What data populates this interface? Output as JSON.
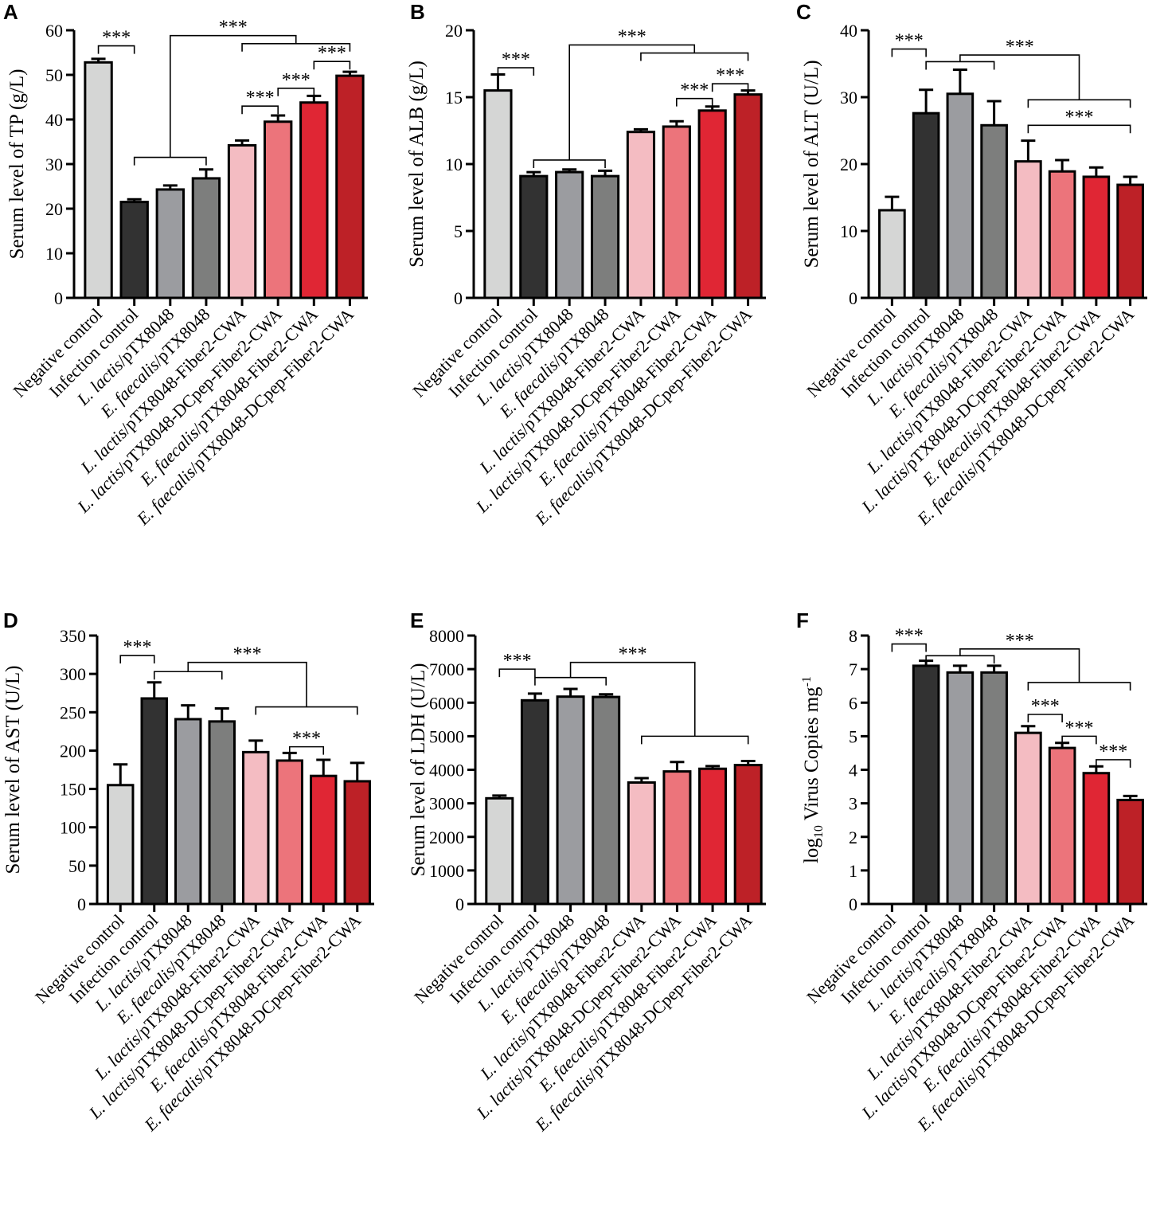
{
  "categories": [
    {
      "prefix": "",
      "italic": "",
      "suffix": "Negative control"
    },
    {
      "prefix": "",
      "italic": "",
      "suffix": "Infection control"
    },
    {
      "prefix": "",
      "italic": "L. lactis",
      "suffix": "/pTX8048"
    },
    {
      "prefix": "",
      "italic": "E. faecalis",
      "suffix": "/pTX8048"
    },
    {
      "prefix": "",
      "italic": "L. lactis",
      "suffix": "/pTX8048-Fiber2-CWA"
    },
    {
      "prefix": "",
      "italic": "L. lactis",
      "suffix": "/pTX8048-DCpep-Fiber2-CWA"
    },
    {
      "prefix": "",
      "italic": "E. faecalis",
      "suffix": "/pTX8048-Fiber2-CWA"
    },
    {
      "prefix": "",
      "italic": "E. faecalis",
      "suffix": "/pTX8048-DCpep-Fiber2-CWA"
    }
  ],
  "colors": [
    "#d5d6d5",
    "#323232",
    "#9b9ca0",
    "#7d7e7d",
    "#f4bcc2",
    "#ec747b",
    "#e02634",
    "#bd2127"
  ],
  "significance_label": "***",
  "chart_data": [
    {
      "panel": "A",
      "type": "bar",
      "ylabel": "Serum level of TP (g/L)",
      "ylim": [
        0,
        60
      ],
      "yticks": [
        0,
        10,
        20,
        30,
        40,
        50,
        60
      ],
      "values": [
        52.8,
        21.5,
        24.3,
        26.8,
        34.2,
        39.5,
        43.8,
        49.8
      ],
      "errors": [
        0.8,
        0.6,
        0.9,
        2.0,
        1.1,
        1.4,
        1.5,
        0.9
      ],
      "brackets": [
        {
          "type": "simple",
          "a": 0,
          "b": 1,
          "level": 56.5,
          "label": true
        },
        {
          "type": "simple",
          "a": 4,
          "b": 5,
          "level": 43.0,
          "label": true
        },
        {
          "type": "simple",
          "a": 5,
          "b": 6,
          "level": 47.0,
          "label": true
        },
        {
          "type": "simple",
          "a": 6,
          "b": 7,
          "level": 53.0,
          "label": true
        },
        {
          "type": "group",
          "from": 1,
          "to": 3,
          "level": 31.5,
          "stem_to": 58.8,
          "partner": {
            "from": 4,
            "to": 7,
            "level": 57.0
          },
          "label": true
        }
      ]
    },
    {
      "panel": "B",
      "type": "bar",
      "ylabel": "Serum level of ALB (g/L)",
      "ylim": [
        0,
        20
      ],
      "yticks": [
        0,
        5,
        10,
        15,
        20
      ],
      "values": [
        15.5,
        9.1,
        9.4,
        9.1,
        12.4,
        12.8,
        14.0,
        15.2
      ],
      "errors": [
        1.2,
        0.3,
        0.2,
        0.4,
        0.2,
        0.4,
        0.3,
        0.3
      ],
      "brackets": [
        {
          "type": "simple",
          "a": 0,
          "b": 1,
          "level": 17.2,
          "label": true
        },
        {
          "type": "simple",
          "a": 5,
          "b": 6,
          "level": 14.9,
          "label": true
        },
        {
          "type": "simple",
          "a": 6,
          "b": 7,
          "level": 16.0,
          "label": true
        },
        {
          "type": "group",
          "from": 1,
          "to": 3,
          "level": 10.3,
          "stem_to": 18.9,
          "partner": {
            "from": 4,
            "to": 7,
            "level": 18.3
          },
          "label": true
        }
      ]
    },
    {
      "panel": "C",
      "type": "bar",
      "ylabel": "Serum level of ALT (U/L)",
      "ylim": [
        0,
        40
      ],
      "yticks": [
        0,
        10,
        20,
        30,
        40
      ],
      "values": [
        13.1,
        27.6,
        30.5,
        25.8,
        20.4,
        18.9,
        18.1,
        16.9
      ],
      "errors": [
        2.0,
        3.5,
        3.6,
        3.6,
        3.1,
        1.7,
        1.4,
        1.2
      ],
      "brackets": [
        {
          "type": "simple",
          "a": 0,
          "b": 1,
          "level": 37.2,
          "label": true
        },
        {
          "type": "simple",
          "a": 4,
          "b": 7,
          "level": 25.8,
          "label": true
        },
        {
          "type": "group",
          "from": 1,
          "to": 3,
          "level": 35.3,
          "stem_to": 36.3,
          "partner": {
            "from": 4,
            "to": 7,
            "level": 29.6
          },
          "label": true
        }
      ]
    },
    {
      "panel": "D",
      "type": "bar",
      "ylabel": "Serum level of AST (U/L)",
      "ylim": [
        0,
        350
      ],
      "yticks": [
        0,
        50,
        100,
        150,
        200,
        250,
        300,
        350
      ],
      "values": [
        155,
        268,
        241,
        238,
        198,
        187,
        167,
        160
      ],
      "errors": [
        27,
        21,
        18,
        17,
        15,
        10,
        21,
        24
      ],
      "brackets": [
        {
          "type": "simple",
          "a": 0,
          "b": 1,
          "level": 324,
          "label": true
        },
        {
          "type": "simple",
          "a": 5,
          "b": 6,
          "level": 205,
          "label": true
        },
        {
          "type": "group",
          "from": 1,
          "to": 3,
          "level": 303,
          "stem_to": 315,
          "partner": {
            "from": 4,
            "to": 7,
            "level": 257
          },
          "label": true
        }
      ]
    },
    {
      "panel": "E",
      "type": "bar",
      "ylabel": "Serum level of LDH (U/L)",
      "ylim": [
        0,
        8000
      ],
      "yticks": [
        0,
        1000,
        2000,
        3000,
        4000,
        5000,
        6000,
        7000,
        8000
      ],
      "values": [
        3150,
        6070,
        6180,
        6170,
        3620,
        3950,
        4030,
        4140
      ],
      "errors": [
        80,
        200,
        230,
        80,
        130,
        280,
        80,
        120
      ],
      "brackets": [
        {
          "type": "simple",
          "a": 0,
          "b": 1,
          "level": 7000,
          "label": true
        },
        {
          "type": "group",
          "from": 1,
          "to": 3,
          "level": 6750,
          "stem_to": 7200,
          "partner": {
            "from": 4,
            "to": 7,
            "level": 5000
          },
          "label": true
        }
      ]
    },
    {
      "panel": "F",
      "type": "bar",
      "ylabel": "log10 Virus Copies mg-1",
      "ylabel_parts": {
        "a": "log",
        "sub": "10",
        "b": " Virus Copies mg",
        "sup": "-1"
      },
      "ylim": [
        0,
        8
      ],
      "yticks": [
        0,
        1,
        2,
        3,
        4,
        5,
        6,
        7,
        8
      ],
      "values": [
        0,
        7.1,
        6.9,
        6.9,
        5.1,
        4.65,
        3.9,
        3.1
      ],
      "errors": [
        0,
        0.15,
        0.2,
        0.2,
        0.2,
        0.15,
        0.2,
        0.12
      ],
      "brackets": [
        {
          "type": "simple",
          "a": 0,
          "b": 1,
          "level": 7.75,
          "label": true
        },
        {
          "type": "simple",
          "a": 4,
          "b": 5,
          "level": 5.65,
          "label": true
        },
        {
          "type": "simple",
          "a": 5,
          "b": 6,
          "level": 5.0,
          "label": true
        },
        {
          "type": "simple",
          "a": 6,
          "b": 7,
          "level": 4.3,
          "label": true
        },
        {
          "type": "group",
          "from": 1,
          "to": 3,
          "level": 7.4,
          "stem_to": 7.6,
          "partner": {
            "from": 4,
            "to": 7,
            "level": 6.6
          },
          "label": true
        }
      ]
    }
  ]
}
